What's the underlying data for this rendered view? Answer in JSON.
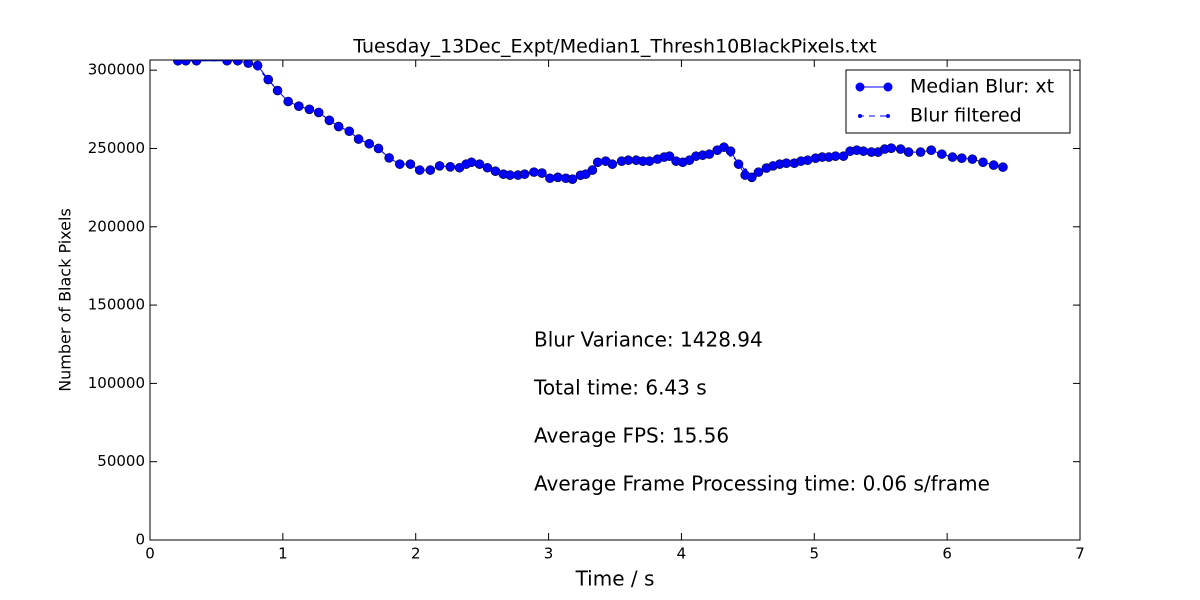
{
  "chart_data": {
    "type": "line",
    "title": "Tuesday_13Dec_Expt/Median1_Thresh10BlackPixels.txt",
    "xlabel": "Time / s",
    "ylabel": "Number of Black Pixels",
    "xlim": [
      0,
      7
    ],
    "xticks": [
      0,
      1,
      2,
      3,
      4,
      5,
      6,
      7
    ],
    "ylim": [
      0,
      306500
    ],
    "yticks": [
      0,
      50000,
      100000,
      150000,
      200000,
      250000,
      300000
    ],
    "legend": "upper right",
    "annotations": [
      "Blur Variance: 1428.94",
      "Total time: 6.43 s",
      "Average FPS: 15.56",
      "Average Frame Processing time: 0.06 s/frame"
    ],
    "x": [
      0.21,
      0.27,
      0.35,
      0.58,
      0.66,
      0.74,
      0.81,
      0.89,
      0.96,
      1.04,
      1.12,
      1.2,
      1.27,
      1.35,
      1.42,
      1.5,
      1.57,
      1.65,
      1.72,
      1.8,
      1.88,
      1.96,
      2.03,
      2.11,
      2.18,
      2.26,
      2.33,
      2.38,
      2.42,
      2.48,
      2.54,
      2.6,
      2.66,
      2.71,
      2.77,
      2.82,
      2.89,
      2.95,
      3.01,
      3.07,
      3.13,
      3.18,
      3.24,
      3.28,
      3.33,
      3.37,
      3.43,
      3.48,
      3.55,
      3.6,
      3.66,
      3.71,
      3.76,
      3.82,
      3.87,
      3.91,
      3.96,
      4.01,
      4.06,
      4.11,
      4.16,
      4.21,
      4.27,
      4.32,
      4.37,
      4.43,
      4.48,
      4.53,
      4.58,
      4.64,
      4.69,
      4.74,
      4.79,
      4.85,
      4.9,
      4.95,
      5.01,
      5.06,
      5.11,
      5.16,
      5.22,
      5.27,
      5.32,
      5.37,
      5.43,
      5.48,
      5.53,
      5.58,
      5.65,
      5.71,
      5.8,
      5.88,
      5.96,
      6.04,
      6.11,
      6.19,
      6.27,
      6.35,
      6.42
    ],
    "series": [
      {
        "name": "Median Blur: xt",
        "color": "#0000ff",
        "style": "solid",
        "values": [
          306000,
          306000,
          306000,
          306000,
          306000,
          304500,
          303000,
          294000,
          287000,
          280000,
          277000,
          275000,
          273000,
          268000,
          264000,
          261000,
          256000,
          253000,
          250000,
          244000,
          240000,
          240000,
          236200,
          236200,
          238900,
          238300,
          237700,
          240000,
          241200,
          240000,
          237700,
          235500,
          233600,
          233000,
          233000,
          233600,
          234900,
          234300,
          231000,
          231600,
          231000,
          230400,
          232900,
          233600,
          236200,
          241200,
          241900,
          240000,
          241900,
          242500,
          242500,
          241900,
          241900,
          243200,
          244500,
          245100,
          241900,
          241200,
          242500,
          245100,
          245700,
          246400,
          248900,
          250800,
          248300,
          240000,
          233000,
          231600,
          234900,
          237500,
          238900,
          240000,
          240600,
          240600,
          241900,
          242500,
          243800,
          244500,
          244500,
          245100,
          245100,
          248300,
          248900,
          248300,
          247700,
          247700,
          249600,
          250200,
          249600,
          247700,
          247700,
          248900,
          246400,
          244500,
          243800,
          243200,
          241200,
          239400,
          238100
        ]
      },
      {
        "name": "Blur filtered",
        "color": "#0000ff",
        "style": "dashed",
        "values": [
          306000,
          306000,
          306000,
          306000,
          306000,
          304500,
          301000,
          294000,
          287000,
          280000,
          277000,
          275000,
          273000,
          268000,
          264000,
          261000,
          256000,
          253000,
          250000,
          244000,
          240000,
          240000,
          236200,
          236200,
          238900,
          238300,
          237700,
          240000,
          241200,
          240000,
          237700,
          235500,
          233600,
          233000,
          233000,
          233600,
          234900,
          234300,
          231000,
          231600,
          231000,
          230400,
          232900,
          233600,
          236200,
          241200,
          241900,
          240000,
          241900,
          242500,
          242500,
          241900,
          241900,
          243200,
          244500,
          245100,
          241900,
          241200,
          242500,
          245100,
          245700,
          246400,
          248900,
          250800,
          246000,
          241000,
          236000,
          231600,
          234900,
          237500,
          238900,
          240000,
          240600,
          240600,
          241900,
          242500,
          243800,
          244500,
          244500,
          245100,
          245100,
          248300,
          248900,
          248300,
          247700,
          247700,
          249600,
          250200,
          249600,
          247700,
          247700,
          248900,
          246400,
          244500,
          243800,
          243200,
          241200,
          239400,
          238100
        ]
      }
    ]
  }
}
